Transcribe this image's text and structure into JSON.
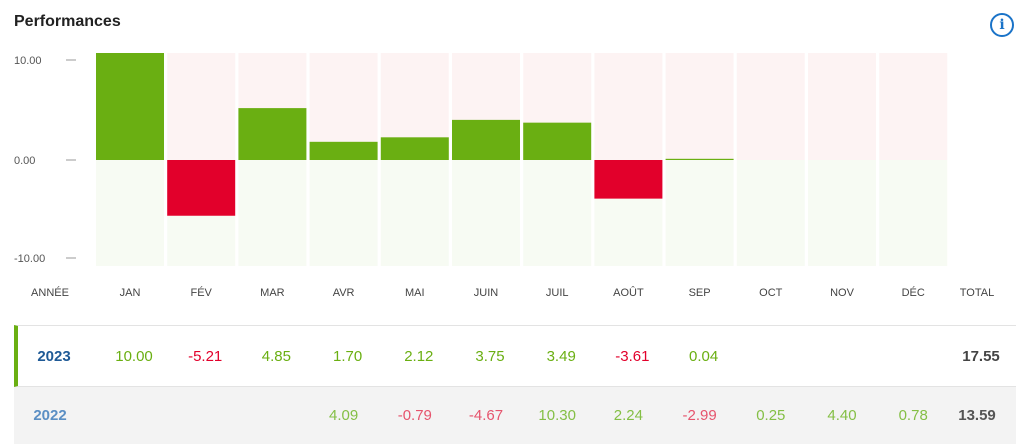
{
  "title": "Performances",
  "info_icon": "info-icon",
  "colors": {
    "positive": "#6aaf12",
    "negative": "#e2002b",
    "bg_positive_area": "#fdf3f3",
    "bg_negative_area": "#f7fbf3"
  },
  "chart_data": {
    "type": "bar",
    "year": "2023",
    "categories": [
      "JAN",
      "FÉV",
      "MAR",
      "AVR",
      "MAI",
      "JUIN",
      "JUIL",
      "AOÛT",
      "SEP",
      "OCT",
      "NOV",
      "DÉC"
    ],
    "values": [
      10.0,
      -5.21,
      4.85,
      1.7,
      2.12,
      3.75,
      3.49,
      -3.61,
      0.04,
      null,
      null,
      null
    ],
    "y_ticks": [
      "10.00",
      "0.00",
      "-10.00"
    ],
    "ylim": [
      -10.5,
      10.5
    ]
  },
  "table": {
    "year_header": "ANNÉE",
    "total_header": "TOTAL",
    "rows": [
      {
        "year": "2023",
        "values": [
          "10.00",
          "-5.21",
          "4.85",
          "1.70",
          "2.12",
          "3.75",
          "3.49",
          "-3.61",
          "0.04",
          "",
          "",
          ""
        ],
        "total": "17.55"
      },
      {
        "year": "2022",
        "values": [
          "",
          "",
          "",
          "4.09",
          "-0.79",
          "-4.67",
          "10.30",
          "2.24",
          "-2.99",
          "0.25",
          "4.40",
          "0.78"
        ],
        "total": "13.59"
      }
    ]
  }
}
